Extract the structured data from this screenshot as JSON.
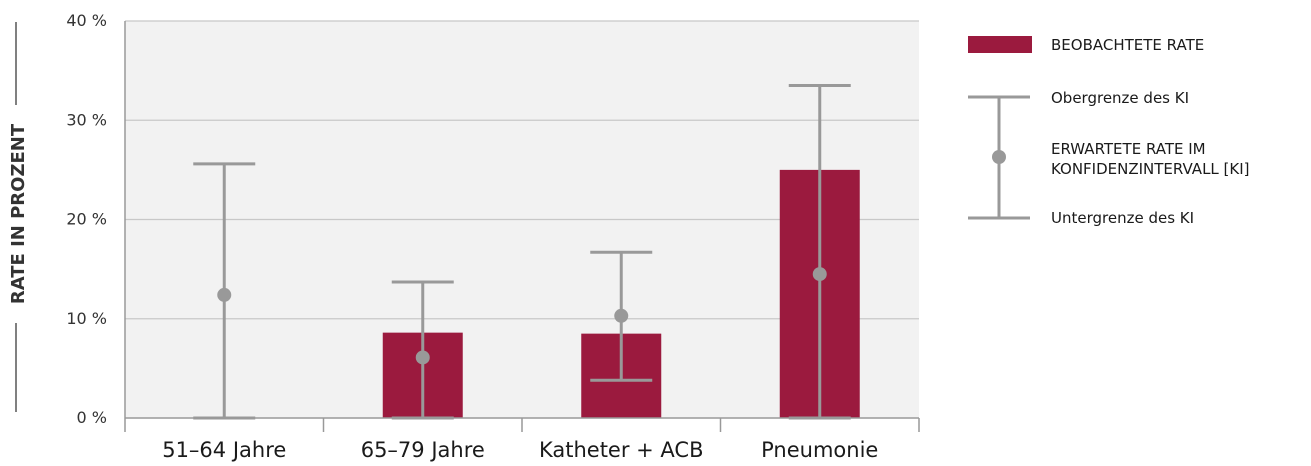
{
  "chart_data": {
    "type": "bar",
    "title": "",
    "ylabel": "RATE IN PROZENT",
    "xlabel": "",
    "ylim": [
      0,
      40
    ],
    "yticks": [
      0,
      10,
      20,
      30,
      40
    ],
    "ytick_labels": [
      "0 %",
      "10 %",
      "20 %",
      "30 %",
      "40 %"
    ],
    "categories": [
      "51–64 Jahre",
      "65–79 Jahre",
      "Katheter + ACB",
      "Pneumonie"
    ],
    "series": [
      {
        "name": "BEOBACHTETE RATE",
        "type": "bar",
        "values": [
          0,
          8.6,
          8.5,
          25.0
        ]
      },
      {
        "name": "ERWARTETE RATE IM KONFIDENZINTERVALL [KI]",
        "type": "point",
        "values": [
          12.4,
          6.1,
          10.3,
          14.5
        ]
      },
      {
        "name": "Obergrenze des KI",
        "type": "error-upper",
        "values": [
          25.6,
          13.7,
          16.7,
          33.5
        ]
      },
      {
        "name": "Untergrenze des KI",
        "type": "error-lower",
        "values": [
          0,
          0,
          3.8,
          0
        ]
      }
    ],
    "legend": {
      "position": "right",
      "items": [
        {
          "label": "BEOBACHTETE RATE",
          "symbol": "bar"
        },
        {
          "label": "Obergrenze des KI",
          "symbol": "upper-cap"
        },
        {
          "label_lines": [
            "ERWARTETE RATE IM",
            "KONFIDENZINTERVALL [KI]"
          ],
          "symbol": "point"
        },
        {
          "label": "Untergrenze des KI",
          "symbol": "lower-cap"
        }
      ]
    },
    "grid": true,
    "colors": {
      "bar": "#9b1a3e",
      "interval": "#999999",
      "plot_bg": "#f2f2f2",
      "grid": "#c8c8c8",
      "axis": "#999999"
    }
  }
}
